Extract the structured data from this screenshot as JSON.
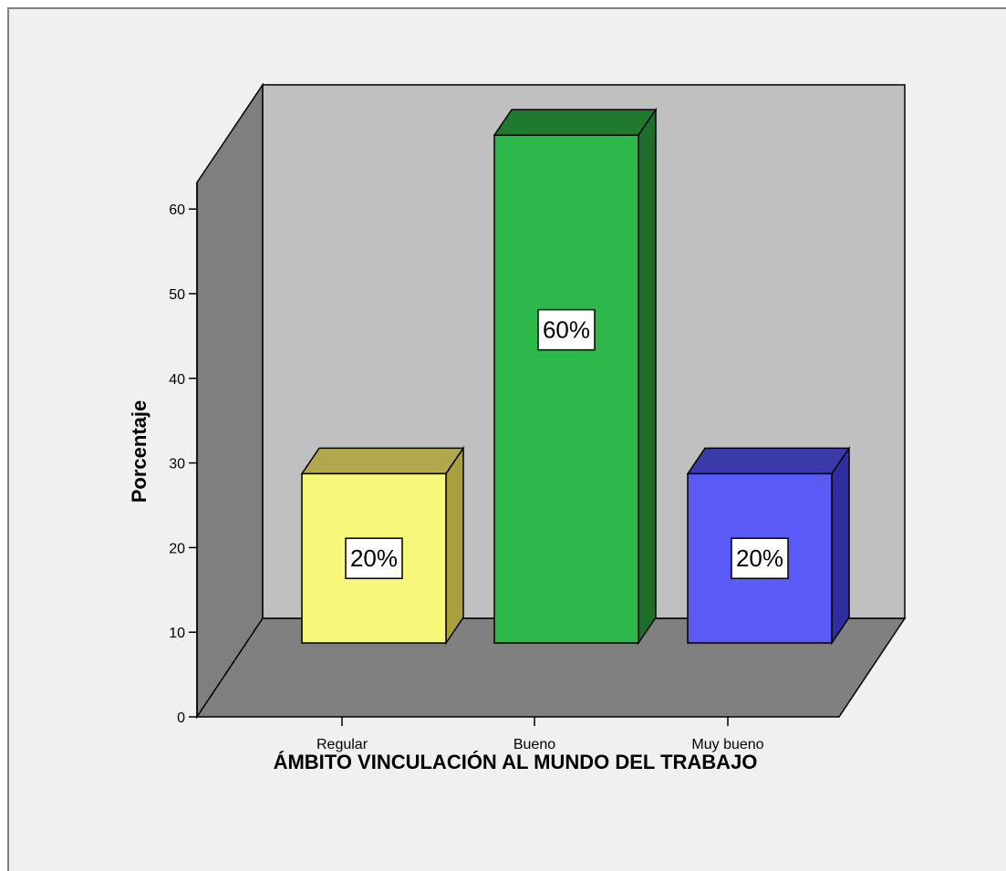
{
  "chart_data": {
    "type": "bar",
    "style": "3d",
    "categories": [
      "Regular",
      "Bueno",
      "Muy bueno"
    ],
    "values": [
      20,
      60,
      20
    ],
    "data_labels": [
      "20%",
      "60%",
      "20%"
    ],
    "bar_colors": [
      "#f7f77a",
      "#2eb84a",
      "#5a5af7"
    ],
    "bar_top_colors": [
      "#b0a84a",
      "#1f7a2e",
      "#3a3aaa"
    ],
    "bar_side_colors": [
      "#a8a040",
      "#1e6e2a",
      "#2e2e9e"
    ],
    "xlabel": "ÁMBITO VINCULACIÓN AL MUNDO DEL TRABAJO",
    "ylabel": "Porcentaje",
    "yticks": [
      0,
      10,
      20,
      30,
      40,
      50,
      60
    ],
    "ylim": [
      0,
      60
    ],
    "grid": false,
    "colors": {
      "back_wall": "#c0c0c0",
      "side_wall": "#7f7f7f",
      "floor": "#808080",
      "background": "#f0f0f0"
    }
  }
}
